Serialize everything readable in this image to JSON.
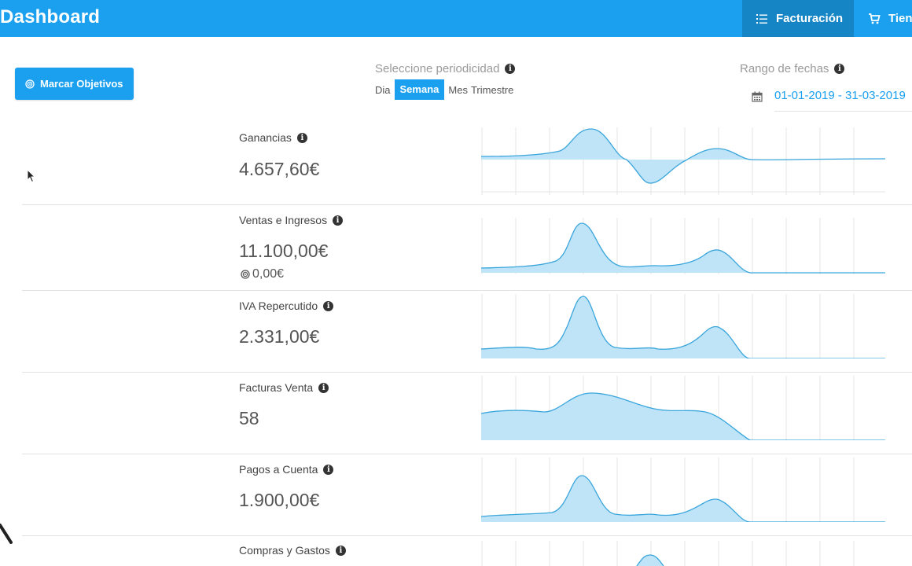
{
  "header": {
    "title": "Dashboard",
    "tabs": [
      {
        "label": "Facturación",
        "icon": "list-icon",
        "active": true
      },
      {
        "label": "Tien",
        "icon": "cart-icon",
        "active": false
      }
    ]
  },
  "toolbar": {
    "objectives_button": {
      "label": "Marcar Objetivos",
      "icon": "target-icon"
    },
    "periodicity": {
      "label": "Seleccione periodicidad",
      "options": [
        "Dia",
        "Semana",
        "Mes",
        "Trimestre"
      ],
      "selected": "Semana"
    },
    "date_range": {
      "label": "Rango de fechas",
      "value": "01-01-2019 - 31-03-2019",
      "icon": "calendar-icon"
    }
  },
  "colors": {
    "primary": "#1ba0f0",
    "primary_dark": "#1585c5",
    "chart_line": "#3aa6dc",
    "chart_fill": "#bfe3f7"
  },
  "metrics": [
    {
      "label": "Ganancias",
      "value": "4.657,60€"
    },
    {
      "label": "Ventas e Ingresos",
      "value": "11.100,00€",
      "target": "0,00€"
    },
    {
      "label": "IVA Repercutido",
      "value": "2.331,00€"
    },
    {
      "label": "Facturas Venta",
      "value": "58"
    },
    {
      "label": "Pagos a Cuenta",
      "value": "1.900,00€"
    },
    {
      "label": "Compras y Gastos",
      "value": ""
    }
  ]
}
